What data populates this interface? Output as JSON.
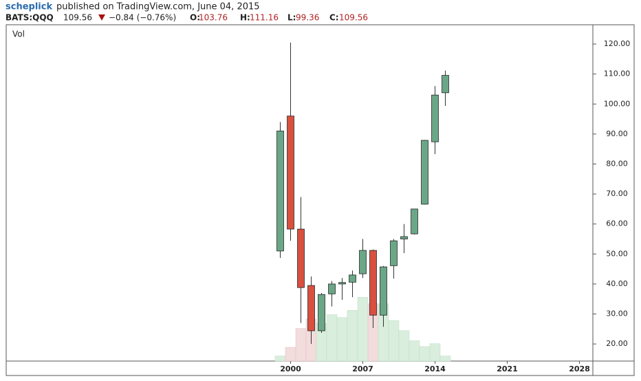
{
  "header": {
    "author": "scheplick",
    "published": "published on TradingView.com, June 04, 2015",
    "symbol": "BATS:QQQ",
    "change": "−0.84 (−0.76%)",
    "o_label": "O:",
    "h_label": "H:",
    "l_label": "L:",
    "c_label": "C:"
  },
  "chart_data": {
    "type": "candlestick",
    "volume_label": "Vol",
    "x": [
      1999,
      2000,
      2001,
      2002,
      2003,
      2004,
      2005,
      2006,
      2007,
      2008,
      2009,
      2010,
      2011,
      2012,
      2013,
      2014,
      2015
    ],
    "open": [
      51,
      96,
      58.3,
      39.5,
      24.4,
      36.7,
      40,
      40.6,
      43.4,
      51.2,
      29.6,
      46.1,
      55,
      56.7,
      66.6,
      87.4,
      103.76
    ],
    "high": [
      94,
      120.5,
      69,
      42.5,
      37,
      41,
      42,
      44.5,
      55,
      51.5,
      46,
      55,
      60,
      65,
      88,
      106,
      111.16
    ],
    "low": [
      48.7,
      54.4,
      27,
      20,
      23.7,
      32.5,
      34.7,
      35.6,
      42,
      25.3,
      25.7,
      41.8,
      50.3,
      56.5,
      66.5,
      83.3,
      99.36
    ],
    "close": [
      91,
      58.3,
      38.8,
      24.4,
      36.5,
      40,
      40.5,
      43,
      51.2,
      29.6,
      45.7,
      54.4,
      55.8,
      65,
      87.9,
      103,
      109.56
    ],
    "volume": [
      7,
      19,
      45,
      58,
      52,
      64,
      60,
      70,
      88,
      79,
      79,
      56,
      42,
      28,
      20,
      24,
      7
    ],
    "up_color": "#6aa787",
    "down_color": "#d9503f",
    "up_volume_color": "#d9eedd",
    "down_volume_color": "#f2dcdc",
    "xlim": [
      1972.5,
      2029.3
    ],
    "xticks": [
      2000,
      2007,
      2014,
      2021,
      2028
    ],
    "ylim": [
      14.3,
      126.2
    ],
    "yticks": [
      {
        "value": 20,
        "label": "20.00"
      },
      {
        "value": 30,
        "label": "30.00"
      },
      {
        "value": 40,
        "label": "40.00"
      },
      {
        "value": 50,
        "label": "50.00"
      },
      {
        "value": 60,
        "label": "60.00"
      },
      {
        "value": 70,
        "label": "70.00"
      },
      {
        "value": 80,
        "label": "80.00"
      },
      {
        "value": 90,
        "label": "90.00"
      },
      {
        "value": 100,
        "label": "100.00"
      },
      {
        "value": 110,
        "label": "110.00"
      },
      {
        "value": 120,
        "label": "120.00"
      }
    ]
  }
}
